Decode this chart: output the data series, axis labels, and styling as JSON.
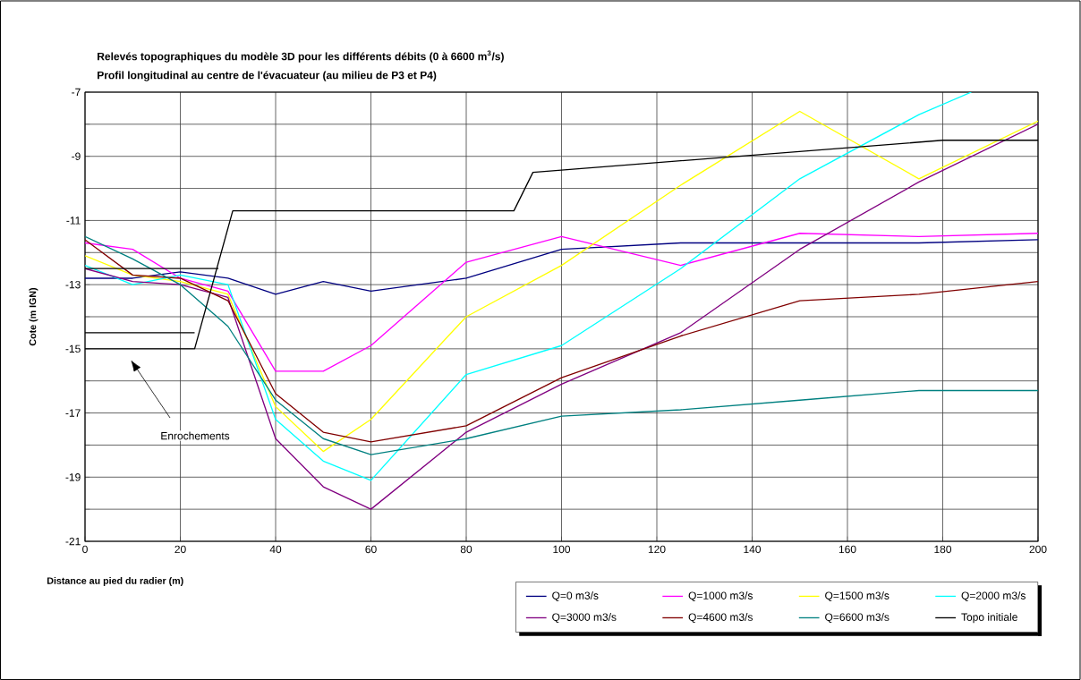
{
  "chart_data": {
    "type": "line",
    "title": "Relevés topographiques du modèle 3D pour les différents débits (0 à 6600 m$^{3}$/s)",
    "subtitle": "Profil longitudinal au centre de l'évacuateur (au milieu de P3 et P4)",
    "xlabel": "Distance au pied du radier (m)",
    "ylabel": "Cote (m IGN)",
    "x": [
      0,
      10,
      20,
      30,
      40,
      50,
      60,
      80,
      100,
      125,
      150,
      175,
      200
    ],
    "series": [
      {
        "name": "Q=0 m3/s",
        "color": "#000080",
        "values": [
          -12.8,
          -12.8,
          -12.6,
          -12.8,
          -13.3,
          -12.9,
          -13.2,
          -12.8,
          -11.9,
          -11.7,
          -11.7,
          -11.7,
          -11.6
        ]
      },
      {
        "name": "Q=1000 m3/s",
        "color": "#ff00ff",
        "values": [
          -11.7,
          -11.9,
          -12.8,
          -13.2,
          -15.7,
          -15.7,
          -14.9,
          -12.3,
          -11.5,
          -12.4,
          -11.4,
          -11.5,
          -11.4
        ]
      },
      {
        "name": "Q=1500 m3/s",
        "color": "#ffff00",
        "values": [
          -12.1,
          -12.7,
          -12.9,
          -13.3,
          -16.8,
          -18.2,
          -17.2,
          -14.0,
          -12.4,
          -9.9,
          -7.6,
          -9.7,
          -7.9
        ]
      },
      {
        "name": "Q=2000 m3/s",
        "color": "#00ffff",
        "x": [
          0,
          10,
          20,
          30,
          40,
          50,
          60,
          80,
          100,
          125,
          150,
          175,
          186
        ],
        "values": [
          -12.4,
          -13.0,
          -12.7,
          -13.0,
          -17.2,
          -18.5,
          -19.1,
          -15.8,
          -14.9,
          -12.5,
          -9.7,
          -7.7,
          -7.0
        ]
      },
      {
        "name": "Q=3000 m3/s",
        "color": "#800080",
        "values": [
          -12.5,
          -12.9,
          -13.0,
          -13.4,
          -17.8,
          -19.3,
          -20.0,
          -17.6,
          -16.1,
          -14.5,
          -11.9,
          -9.8,
          -8.0
        ]
      },
      {
        "name": "Q=4600 m3/s",
        "color": "#800000",
        "values": [
          -11.6,
          -12.7,
          -12.8,
          -13.5,
          -16.4,
          -17.6,
          -17.9,
          -17.4,
          -15.9,
          -14.6,
          -13.5,
          -13.3,
          -12.9
        ]
      },
      {
        "name": "Q=6600 m3/s",
        "color": "#008080",
        "values": [
          -11.5,
          -12.2,
          -13.0,
          -14.3,
          -16.6,
          -17.8,
          -18.3,
          -17.8,
          -17.1,
          -16.9,
          -16.6,
          -16.3,
          -16.3
        ]
      },
      {
        "name": "Topo initiale",
        "color": "#000000",
        "x": [
          0,
          28,
          null,
          0,
          23,
          null,
          0,
          23,
          31,
          90,
          94,
          180,
          200
        ],
        "values": [
          -12.5,
          -12.5,
          null,
          -14.5,
          -14.5,
          null,
          -15.0,
          -15.0,
          -10.7,
          -10.7,
          -9.5,
          -8.5,
          -8.5
        ]
      }
    ],
    "xlim": [
      0,
      200
    ],
    "ylim": [
      -21,
      -7
    ],
    "xticks": [
      0,
      20,
      40,
      60,
      80,
      100,
      120,
      140,
      160,
      180,
      200
    ],
    "yticks": [
      -21,
      {
        "value": -20,
        "label": null
      },
      -19,
      {
        "value": -18,
        "label": null
      },
      -17,
      {
        "value": -16,
        "label": null
      },
      -15,
      {
        "value": -14,
        "label": null
      },
      -13,
      {
        "value": -12,
        "label": null
      },
      -11,
      {
        "value": -10,
        "label": null
      },
      -9,
      {
        "value": -8,
        "label": null
      },
      -7
    ],
    "grid": true,
    "legend": "bottom",
    "marker": "none",
    "line_style": "solid",
    "annotations": [
      "Enrochements"
    ]
  }
}
